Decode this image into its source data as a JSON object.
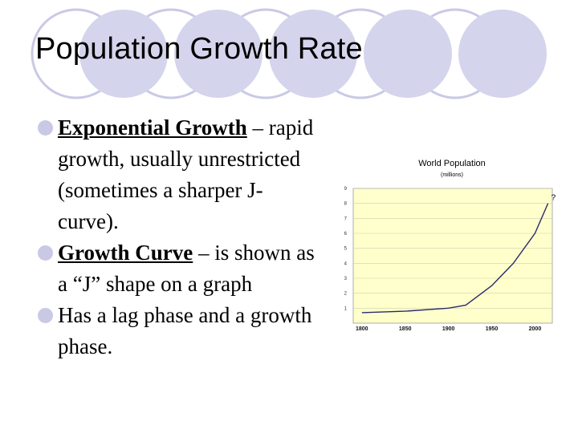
{
  "slide": {
    "title": "Population Growth Rate",
    "bullets": [
      {
        "term": "Exponential Growth",
        "text": " – rapid growth, usually unrestricted (sometimes a sharper J- curve)."
      },
      {
        "term": "Growth Curve",
        "text": " – is shown as a “J” shape on a graph"
      },
      {
        "term": "",
        "text": "Has a lag phase and a growth phase."
      }
    ],
    "accent_color": "#c9c9e6"
  },
  "chart_data": {
    "type": "line",
    "title": "World Population",
    "subtitle": "(millions)",
    "x": [
      1800,
      1850,
      1900,
      1920,
      1950,
      1975,
      2000,
      2015
    ],
    "series": [
      {
        "values": [
          0.7,
          0.8,
          1.0,
          1.2,
          2.5,
          4.0,
          6.0,
          8.0
        ]
      }
    ],
    "xticks": [
      "1800",
      "1850",
      "1900",
      "1950",
      "2000"
    ],
    "xtick_values": [
      1800,
      1850,
      1900,
      1950,
      2000
    ],
    "yticks": [
      "1",
      "2",
      "3",
      "4",
      "5",
      "6",
      "7",
      "8",
      "9"
    ],
    "ytick_values": [
      1,
      2,
      3,
      4,
      5,
      6,
      7,
      8,
      9
    ],
    "xlim": [
      1790,
      2020
    ],
    "ylim": [
      0,
      9
    ],
    "annotation": {
      "text": "?",
      "x": 2015,
      "y": 8.0
    },
    "background_color": "#ffffcc",
    "line_color": "#2b2b6b",
    "grid": true
  }
}
